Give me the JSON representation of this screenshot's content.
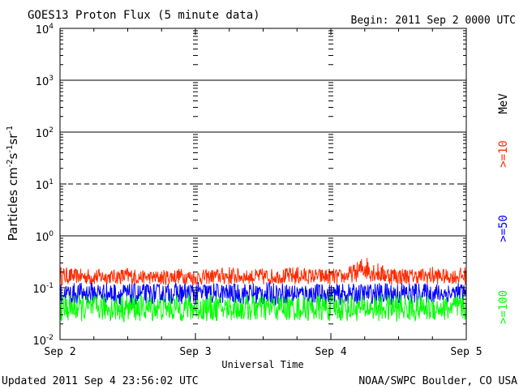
{
  "chart_data": {
    "type": "line",
    "title": "GOES13 Proton Flux (5 minute data)",
    "begin_label": "Begin: 2011 Sep 2 0000 UTC",
    "xlabel": "Universal Time",
    "ylabel": "Particles cm-2s-1sr-1",
    "y_scale": "log",
    "ylim": [
      0.01,
      10000
    ],
    "xlim_days": [
      0,
      3
    ],
    "x_ticks": [
      {
        "day": 0,
        "label": "Sep 2"
      },
      {
        "day": 1,
        "label": "Sep 3"
      },
      {
        "day": 2,
        "label": "Sep 4"
      },
      {
        "day": 3,
        "label": "Sep 5"
      }
    ],
    "y_ticks": [
      {
        "value": 0.01,
        "base": "10",
        "exp": "-2"
      },
      {
        "value": 0.1,
        "base": "10",
        "exp": "-1"
      },
      {
        "value": 1,
        "base": "10",
        "exp": "0"
      },
      {
        "value": 10,
        "base": "10",
        "exp": "1"
      },
      {
        "value": 100,
        "base": "10",
        "exp": "2"
      },
      {
        "value": 1000,
        "base": "10",
        "exp": "3"
      },
      {
        "value": 10000,
        "base": "10",
        "exp": "4"
      }
    ],
    "threshold_lines": [
      {
        "value": 1,
        "style": "solid"
      },
      {
        "value": 10,
        "style": "dashed"
      },
      {
        "value": 100,
        "style": "solid"
      },
      {
        "value": 1000,
        "style": "solid"
      }
    ],
    "unit_label": "MeV",
    "series": [
      {
        "name": ">=10",
        "color": "#ff2a00",
        "x_days": [
          0,
          0.125,
          0.25,
          0.375,
          0.5,
          0.625,
          0.75,
          0.875,
          1,
          1.125,
          1.25,
          1.375,
          1.5,
          1.625,
          1.75,
          1.875,
          2,
          2.1,
          2.2,
          2.25,
          2.3,
          2.375,
          2.5,
          2.625,
          2.75,
          2.875,
          3
        ],
        "high": [
          0.26,
          0.23,
          0.24,
          0.22,
          0.25,
          0.21,
          0.22,
          0.24,
          0.22,
          0.23,
          0.26,
          0.22,
          0.24,
          0.23,
          0.26,
          0.23,
          0.24,
          0.22,
          0.32,
          0.45,
          0.35,
          0.28,
          0.25,
          0.23,
          0.26,
          0.22,
          0.26
        ],
        "low": [
          0.11,
          0.12,
          0.11,
          0.12,
          0.11,
          0.12,
          0.11,
          0.12,
          0.11,
          0.12,
          0.11,
          0.12,
          0.11,
          0.12,
          0.11,
          0.12,
          0.11,
          0.12,
          0.13,
          0.14,
          0.13,
          0.12,
          0.11,
          0.12,
          0.11,
          0.12,
          0.11
        ]
      },
      {
        "name": ">=50",
        "color": "#0000ff",
        "x_days": [
          0,
          0.25,
          0.5,
          0.75,
          1,
          1.25,
          1.5,
          1.75,
          2,
          2.25,
          2.5,
          2.75,
          3
        ],
        "high": [
          0.12,
          0.13,
          0.12,
          0.12,
          0.13,
          0.12,
          0.13,
          0.12,
          0.12,
          0.12,
          0.13,
          0.12,
          0.13
        ],
        "low": [
          0.045,
          0.05,
          0.045,
          0.05,
          0.045,
          0.05,
          0.045,
          0.05,
          0.045,
          0.05,
          0.045,
          0.05,
          0.045
        ]
      },
      {
        "name": ">=100",
        "color": "#00ff00",
        "x_days": [
          0,
          0.25,
          0.5,
          0.75,
          1,
          1.25,
          1.5,
          1.75,
          2,
          2.25,
          2.5,
          2.75,
          3
        ],
        "high": [
          0.075,
          0.07,
          0.075,
          0.07,
          0.075,
          0.07,
          0.075,
          0.07,
          0.075,
          0.07,
          0.075,
          0.07,
          0.075
        ],
        "low": [
          0.022,
          0.023,
          0.022,
          0.023,
          0.022,
          0.023,
          0.022,
          0.023,
          0.022,
          0.023,
          0.022,
          0.023,
          0.022
        ]
      }
    ]
  },
  "footer": {
    "updated": "Updated 2011 Sep  4 23:56:02 UTC",
    "source": "NOAA/SWPC Boulder, CO USA"
  }
}
